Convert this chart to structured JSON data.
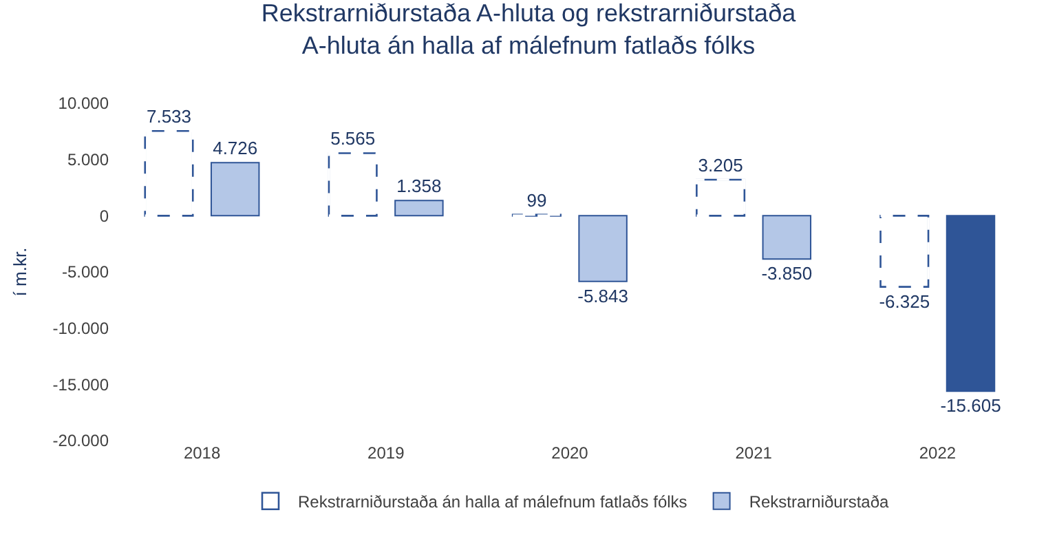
{
  "chart_data": {
    "type": "bar",
    "title": "Rekstrarniðurstaða A-hluta og rekstrarniðurstaða\nA-hluta án halla af málefnum fatlaðs fólks",
    "ylabel": "í m.kr.",
    "categories": [
      "2018",
      "2019",
      "2020",
      "2021",
      "2022"
    ],
    "series": [
      {
        "name": "Rekstrarniðurstaða án halla af málefnum fatlaðs fólks",
        "color": "#2f5597",
        "line_style": "dashed",
        "values": [
          7533,
          5565,
          99,
          3205,
          -6325
        ],
        "value_labels": [
          "7.533",
          "5.565",
          "99",
          "3.205",
          "-6.325"
        ]
      },
      {
        "name": "Rekstrarniðurstaða",
        "colors": [
          "#b4c7e7",
          "#b4c7e7",
          "#b4c7e7",
          "#b4c7e7",
          "#2f5597"
        ],
        "values": [
          4726,
          1358,
          -5843,
          -3850,
          -15605
        ],
        "value_labels": [
          "4.726",
          "1.358",
          "-5.843",
          "-3.850",
          "-15.605"
        ]
      }
    ],
    "ylim": [
      -20000,
      10000
    ],
    "yticks": [
      {
        "value": -20000,
        "label": "-20.000"
      },
      {
        "value": -15000,
        "label": "-15.000"
      },
      {
        "value": -10000,
        "label": "-10.000"
      },
      {
        "value": -5000,
        "label": "-5.000"
      },
      {
        "value": 0,
        "label": "0"
      },
      {
        "value": 5000,
        "label": "5.000"
      },
      {
        "value": 10000,
        "label": "10.000"
      }
    ],
    "legend": "bottom"
  }
}
